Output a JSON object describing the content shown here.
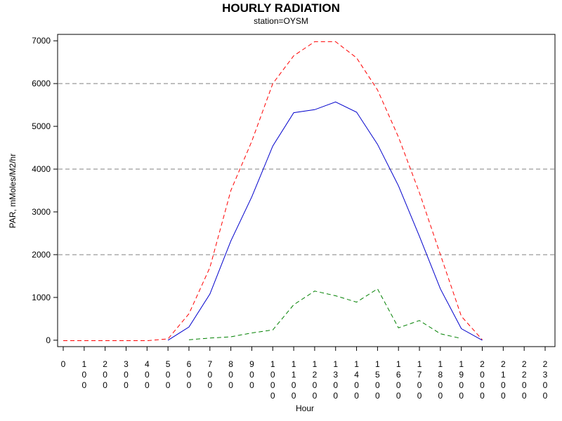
{
  "chart_data": {
    "type": "line",
    "title": "HOURLY RADIATION",
    "subtitle": "station=OYSM",
    "xlabel": "Hour",
    "ylabel": "PAR, mMoles/M2/hr",
    "x": [
      0,
      100,
      200,
      300,
      400,
      500,
      600,
      700,
      800,
      900,
      1000,
      1100,
      1200,
      1300,
      1400,
      1500,
      1600,
      1700,
      1800,
      1900,
      2000,
      2100,
      2200,
      2300
    ],
    "x_tick_labels": [
      "0",
      "100",
      "200",
      "300",
      "400",
      "500",
      "600",
      "700",
      "800",
      "900",
      "1000",
      "1100",
      "1200",
      "1300",
      "1400",
      "1500",
      "1600",
      "1700",
      "1800",
      "1900",
      "2000",
      "2100",
      "2200",
      "2300"
    ],
    "xlim": [
      0,
      2300
    ],
    "y_ticks": [
      0,
      1000,
      2000,
      3000,
      4000,
      5000,
      6000,
      7000
    ],
    "ylim": [
      -150,
      7150
    ],
    "reference_lines": [
      2000,
      4000,
      6000
    ],
    "series": [
      {
        "color": "#ff0000",
        "style": "dashed",
        "points": [
          [
            0,
            -10
          ],
          [
            100,
            -10
          ],
          [
            200,
            -10
          ],
          [
            300,
            -10
          ],
          [
            400,
            -10
          ],
          [
            500,
            30
          ],
          [
            600,
            620
          ],
          [
            700,
            1700
          ],
          [
            800,
            3500
          ],
          [
            900,
            4650
          ],
          [
            1000,
            6000
          ],
          [
            1100,
            6650
          ],
          [
            1200,
            6980
          ],
          [
            1300,
            6980
          ],
          [
            1400,
            6600
          ],
          [
            1500,
            5850
          ],
          [
            1600,
            4750
          ],
          [
            1700,
            3450
          ],
          [
            1800,
            2000
          ],
          [
            1900,
            560
          ],
          [
            2000,
            10
          ]
        ]
      },
      {
        "color": "#0000cc",
        "style": "solid",
        "points": [
          [
            500,
            0
          ],
          [
            600,
            310
          ],
          [
            700,
            1080
          ],
          [
            800,
            2320
          ],
          [
            900,
            3350
          ],
          [
            1000,
            4540
          ],
          [
            1100,
            5320
          ],
          [
            1200,
            5390
          ],
          [
            1300,
            5570
          ],
          [
            1400,
            5330
          ],
          [
            1500,
            4580
          ],
          [
            1600,
            3610
          ],
          [
            1700,
            2430
          ],
          [
            1800,
            1200
          ],
          [
            1900,
            270
          ],
          [
            2000,
            0
          ]
        ]
      },
      {
        "color": "#008000",
        "style": "dashed",
        "points": [
          [
            600,
            10
          ],
          [
            700,
            50
          ],
          [
            800,
            80
          ],
          [
            900,
            170
          ],
          [
            1000,
            240
          ],
          [
            1100,
            830
          ],
          [
            1200,
            1150
          ],
          [
            1300,
            1040
          ],
          [
            1400,
            890
          ],
          [
            1500,
            1200
          ],
          [
            1600,
            290
          ],
          [
            1700,
            460
          ],
          [
            1800,
            150
          ],
          [
            1900,
            40
          ]
        ]
      }
    ]
  }
}
